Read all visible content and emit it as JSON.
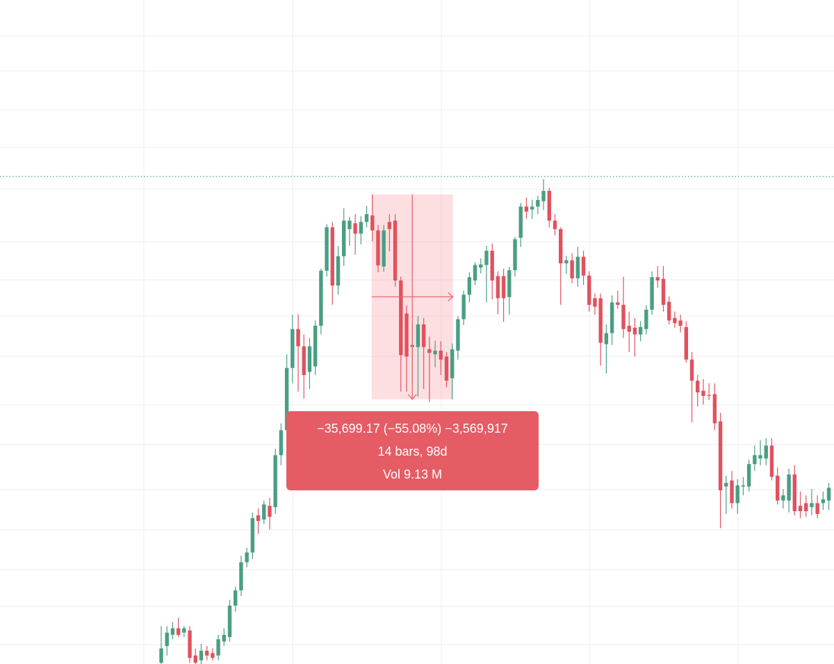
{
  "chart_data": {
    "type": "candlestick",
    "log_scale": true,
    "ylim": [
      10350,
      138500
    ],
    "up_color": "#4a9e83",
    "down_color": "#e0525e",
    "price_line": 69500,
    "candles": [
      [
        10400,
        12000,
        10300,
        11000
      ],
      [
        11100,
        12000,
        10700,
        11700
      ],
      [
        11600,
        12200,
        11400,
        11900
      ],
      [
        11900,
        12400,
        11500,
        11600
      ],
      [
        11700,
        12000,
        11500,
        11900
      ],
      [
        11800,
        12000,
        10400,
        10600
      ],
      [
        10700,
        11000,
        10350,
        10400
      ],
      [
        10500,
        11200,
        10350,
        10900
      ],
      [
        10900,
        11100,
        10500,
        10700
      ],
      [
        10800,
        11000,
        10500,
        10600
      ],
      [
        10700,
        11600,
        10500,
        11400
      ],
      [
        11300,
        11900,
        11100,
        11600
      ],
      [
        11500,
        13300,
        11300,
        13000
      ],
      [
        13000,
        14000,
        12700,
        13800
      ],
      [
        13800,
        15800,
        13500,
        15400
      ],
      [
        15400,
        16300,
        15100,
        16000
      ],
      [
        16000,
        18700,
        15600,
        18300
      ],
      [
        18500,
        19000,
        17200,
        18100
      ],
      [
        18200,
        19600,
        17900,
        19300
      ],
      [
        19200,
        19800,
        17500,
        18400
      ],
      [
        19100,
        24000,
        18600,
        23400
      ],
      [
        23400,
        26500,
        22500,
        25800
      ],
      [
        25800,
        34700,
        24800,
        32900
      ],
      [
        32900,
        40500,
        31000,
        38300
      ],
      [
        38300,
        40600,
        30000,
        35800
      ],
      [
        35800,
        37500,
        29200,
        32000
      ],
      [
        32400,
        37000,
        30300,
        35800
      ],
      [
        33100,
        39600,
        32000,
        38800
      ],
      [
        38800,
        48500,
        37500,
        48100
      ],
      [
        48100,
        57700,
        47000,
        57000
      ],
      [
        57000,
        58200,
        42100,
        45400
      ],
      [
        45400,
        53000,
        43800,
        50900
      ],
      [
        50900,
        61400,
        49000,
        58500
      ],
      [
        56600,
        59400,
        53000,
        58500
      ],
      [
        57900,
        60000,
        51200,
        55600
      ],
      [
        55600,
        59500,
        53300,
        58200
      ],
      [
        58200,
        62000,
        57000,
        60000
      ],
      [
        59700,
        64800,
        54000,
        56300
      ],
      [
        56300,
        57500,
        47800,
        49100
      ],
      [
        48900,
        57500,
        47900,
        56300
      ],
      [
        58200,
        60000,
        51900,
        56600
      ],
      [
        58500,
        60000,
        45200,
        46300
      ],
      [
        46300,
        47000,
        30000,
        34600
      ],
      [
        40700,
        42000,
        30000,
        34400
      ],
      [
        35700,
        39000,
        31000,
        36000
      ],
      [
        35700,
        40300,
        29400,
        39000
      ],
      [
        39000,
        40000,
        30300,
        35700
      ],
      [
        35400,
        37200,
        28800,
        34900
      ],
      [
        34700,
        36600,
        33000,
        35200
      ],
      [
        35200,
        36500,
        32000,
        34000
      ],
      [
        34400,
        35000,
        30500,
        31300
      ],
      [
        31600,
        36200,
        29100,
        35400
      ],
      [
        35200,
        40300,
        34000,
        39800
      ],
      [
        39800,
        44500,
        38900,
        43800
      ],
      [
        43800,
        47800,
        42500,
        46900
      ],
      [
        46300,
        49700,
        45500,
        49200
      ],
      [
        48700,
        50500,
        47600,
        49300
      ],
      [
        49200,
        53000,
        42500,
        52000
      ],
      [
        52000,
        53500,
        43000,
        46300
      ],
      [
        47100,
        48000,
        40600,
        43200
      ],
      [
        47100,
        48500,
        39400,
        43200
      ],
      [
        43400,
        48800,
        40500,
        48200
      ],
      [
        48200,
        54900,
        47000,
        54400
      ],
      [
        54700,
        62700,
        52800,
        61800
      ],
      [
        61800,
        64000,
        58900,
        60600
      ],
      [
        61100,
        63500,
        58900,
        61800
      ],
      [
        61800,
        64500,
        60000,
        63400
      ],
      [
        63100,
        68800,
        61000,
        65700
      ],
      [
        65700,
        66500,
        57000,
        58500
      ],
      [
        58500,
        60000,
        55200,
        56600
      ],
      [
        56600,
        57000,
        42100,
        49500
      ],
      [
        49500,
        51000,
        47500,
        50100
      ],
      [
        50100,
        51500,
        45800,
        46700
      ],
      [
        46700,
        52800,
        45200,
        50800
      ],
      [
        50800,
        52000,
        45500,
        47200
      ],
      [
        47200,
        48000,
        41000,
        42100
      ],
      [
        43200,
        44000,
        40500,
        41800
      ],
      [
        43200,
        44000,
        33200,
        36300
      ],
      [
        36100,
        39000,
        32200,
        37700
      ],
      [
        37700,
        43700,
        36000,
        42500
      ],
      [
        42500,
        44500,
        41500,
        42100
      ],
      [
        42100,
        47000,
        37000,
        38300
      ],
      [
        38800,
        41000,
        35000,
        37900
      ],
      [
        38500,
        40000,
        34400,
        37500
      ],
      [
        37500,
        39500,
        36500,
        38600
      ],
      [
        38300,
        42000,
        37500,
        41300
      ],
      [
        41300,
        48000,
        40500,
        46900
      ],
      [
        46900,
        49000,
        45000,
        46300
      ],
      [
        46600,
        49000,
        41000,
        42100
      ],
      [
        42600,
        43500,
        39000,
        39600
      ],
      [
        40000,
        41000,
        38500,
        39200
      ],
      [
        39600,
        40500,
        37800,
        38800
      ],
      [
        38600,
        39500,
        33600,
        34000
      ],
      [
        34000,
        35000,
        26600,
        31300
      ],
      [
        31300,
        32000,
        28300,
        29900
      ],
      [
        30100,
        31500,
        28500,
        29500
      ],
      [
        29600,
        31000,
        29000,
        29500
      ],
      [
        29700,
        31000,
        25800,
        26500
      ],
      [
        26700,
        27600,
        17600,
        20400
      ],
      [
        20700,
        21600,
        18600,
        21000
      ],
      [
        21200,
        22000,
        19000,
        19400
      ],
      [
        19400,
        21300,
        18600,
        20800
      ],
      [
        20700,
        21500,
        20000,
        20800
      ],
      [
        20700,
        23000,
        20300,
        22600
      ],
      [
        22600,
        24300,
        22000,
        23400
      ],
      [
        23100,
        24800,
        22500,
        23400
      ],
      [
        23100,
        25000,
        22500,
        24300
      ],
      [
        24300,
        25000,
        21200,
        21500
      ],
      [
        21600,
        22300,
        19300,
        19600
      ],
      [
        19600,
        20500,
        19000,
        20000
      ],
      [
        19600,
        22200,
        18700,
        21700
      ],
      [
        21700,
        22500,
        18500,
        18800
      ],
      [
        19200,
        20300,
        18300,
        18800
      ],
      [
        19400,
        20000,
        18400,
        18800
      ],
      [
        19100,
        20500,
        18500,
        19400
      ],
      [
        19400,
        20000,
        18300,
        18600
      ],
      [
        19400,
        20300,
        18900,
        19700
      ],
      [
        19600,
        21000,
        18900,
        20600
      ]
    ],
    "measure": {
      "start_bar": 37,
      "end_bar": 51,
      "start_price": 64813,
      "end_price": 29114,
      "lines": [
        "−35,699.17 (−55.08%) −3,569,917",
        "14 bars, 98d",
        "Vol 9.13 M"
      ]
    }
  }
}
